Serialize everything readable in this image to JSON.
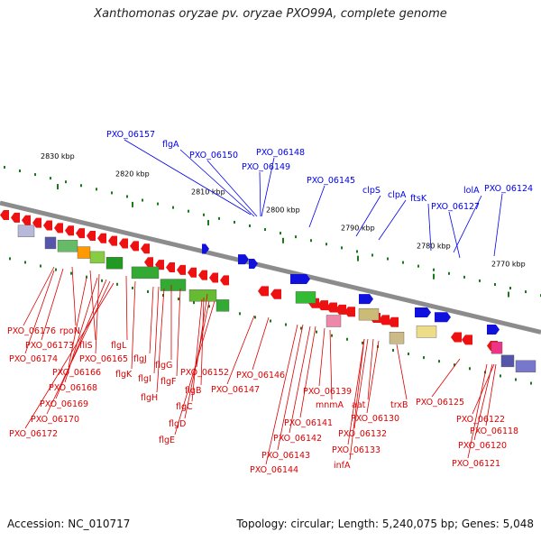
{
  "title": "Xanthomonas oryzae pv. oryzae PXO99A, complete genome",
  "footer": {
    "accession": "Accession: NC_010717",
    "summary": "Topology: circular; Length: 5,240,075 bp; Genes: 5,048"
  },
  "colors": {
    "backbone": "#8c8c8c",
    "forward_label": "#0000ee",
    "reverse_label": "#dd0000",
    "tick": "#1a7a1a"
  },
  "axis": {
    "unit": "kbp",
    "ticks": [
      "2830 kbp",
      "2820 kbp",
      "2810 kbp",
      "2800 kbp",
      "2790 kbp",
      "2780 kbp",
      "2770 kbp"
    ]
  },
  "genes_forward": [
    "PXO_06157",
    "flgA",
    "PXO_06150",
    "PXO_06148",
    "PXO_06149",
    "PXO_06145",
    "clpS",
    "clpA",
    "ftsK",
    "lolA",
    "PXO_06124",
    "PXO_06127"
  ],
  "genes_reverse": [
    "PXO_06176",
    "rpoN",
    "PXO_06173",
    "fliS",
    "PXO_06174",
    "PXO_06165",
    "flgL",
    "PXO_06166",
    "flgK",
    "flgG",
    "PXO_06168",
    "flgJ",
    "flgI",
    "flgF",
    "PXO_06152",
    "PXO_06169",
    "flgH",
    "flgB",
    "flgC",
    "PXO_06170",
    "flgD",
    "PXO_06172",
    "flgE",
    "PXO_06146",
    "PXO_06147",
    "PXO_06139",
    "mnmA",
    "PXO_06141",
    "PXO_06142",
    "PXO_06143",
    "PXO_06144",
    "aat",
    "trxB",
    "PXO_06130",
    "PXO_06132",
    "PXO_06133",
    "infA",
    "PXO_06125",
    "PXO_06122",
    "PXO_06118",
    "PXO_06120",
    "PXO_06121"
  ]
}
